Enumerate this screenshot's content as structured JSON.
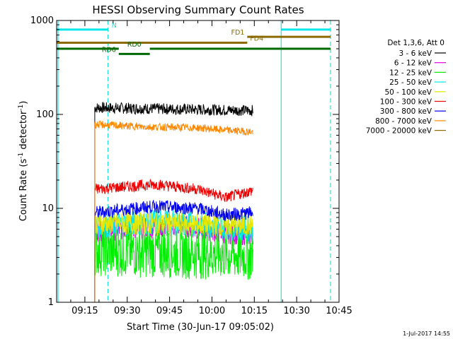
{
  "chart_data": {
    "type": "line",
    "title": "HESSI Observing Summary Count Rates",
    "xlabel": "Start Time (30-Jun-17 09:05:02)",
    "ylabel_main": "Count Rate (s",
    "ylabel_sup1": "-1",
    "ylabel_mid": " detector",
    "ylabel_sup2": "-1",
    "ylabel_end": ")",
    "footer_stamp": "1-Jul-2017 14:55",
    "y_scale": "log",
    "ylim": [
      1,
      1000
    ],
    "xlim_minutes": [
      0,
      100
    ],
    "x_ticks": [
      {
        "m": 10,
        "label": "09:15"
      },
      {
        "m": 25,
        "label": "09:30"
      },
      {
        "m": 40,
        "label": "09:45"
      },
      {
        "m": 55,
        "label": "10:00"
      },
      {
        "m": 70,
        "label": "10:15"
      },
      {
        "m": 85,
        "label": "10:30"
      },
      {
        "m": 100,
        "label": "10:45"
      }
    ],
    "y_ticks": [
      {
        "v": 1,
        "label": "1"
      },
      {
        "v": 10,
        "label": "10"
      },
      {
        "v": 100,
        "label": "100"
      },
      {
        "v": 1000,
        "label": "1000"
      }
    ],
    "legend_title": "Det 1,3,6, Att 0",
    "legend_placement": "right, outside plot",
    "series": [
      {
        "name": "3 - 6 keV",
        "color": "#000000",
        "start": 13.5,
        "end": 69.5,
        "levels": [
          [
            13.5,
            118
          ],
          [
            69.5,
            110
          ]
        ],
        "noise": 0.06
      },
      {
        "name": "6 - 12 keV",
        "color": "#e000e0",
        "start": 13.5,
        "end": 69.5,
        "levels": [
          [
            13.5,
            5.8
          ],
          [
            30,
            6.2
          ],
          [
            45,
            6.5
          ],
          [
            60,
            5.5
          ],
          [
            69.5,
            5.2
          ]
        ],
        "noise": 0.12
      },
      {
        "name": "12 - 25 keV",
        "color": "#00ee00",
        "start": 13.5,
        "end": 69.5,
        "levels": [
          [
            13.5,
            3.6
          ],
          [
            69.5,
            3.2
          ]
        ],
        "noise": 0.28
      },
      {
        "name": "25 - 50 keV",
        "color": "#00e8e8",
        "start": 13.5,
        "end": 69.5,
        "levels": [
          [
            13.5,
            6.5
          ],
          [
            35,
            7.2
          ],
          [
            50,
            6.8
          ],
          [
            69.5,
            6.0
          ]
        ],
        "noise": 0.14
      },
      {
        "name": "50 - 100 keV",
        "color": "#e8e800",
        "start": 13.5,
        "end": 69.5,
        "levels": [
          [
            13.5,
            7.0
          ],
          [
            69.5,
            6.5
          ]
        ],
        "noise": 0.12
      },
      {
        "name": "100 - 300 keV",
        "color": "#ee0000",
        "start": 13.5,
        "end": 69.5,
        "levels": [
          [
            13.5,
            16
          ],
          [
            35,
            18
          ],
          [
            50,
            16
          ],
          [
            60,
            13
          ],
          [
            69.5,
            15.5
          ]
        ],
        "noise": 0.06
      },
      {
        "name": "300 - 800 keV",
        "color": "#0000ee",
        "start": 13.5,
        "end": 69.5,
        "levels": [
          [
            13.5,
            9
          ],
          [
            35,
            10.5
          ],
          [
            50,
            10
          ],
          [
            60,
            8.5
          ],
          [
            69.5,
            9
          ]
        ],
        "noise": 0.07
      },
      {
        "name": "800 - 7000 keV",
        "color": "#ff8800",
        "start": 13.5,
        "end": 69.5,
        "levels": [
          [
            13.5,
            78
          ],
          [
            30,
            74
          ],
          [
            50,
            72
          ],
          [
            60,
            68
          ],
          [
            69.5,
            65
          ]
        ],
        "noise": 0.04
      },
      {
        "name": "7000 - 20000 keV",
        "color": "#8b6a00",
        "start": null,
        "end": null,
        "levels": [],
        "noise": 0
      }
    ],
    "annotations": {
      "vlines_solid": [
        {
          "m": 0.5,
          "color": "#00d8d8"
        },
        {
          "m": 79.5,
          "color": "#00d8d8"
        }
      ],
      "vlines_dashed": [
        {
          "m": 18.2,
          "color": "#00d8d8"
        },
        {
          "m": 97.0,
          "color": "#00d8d8"
        }
      ],
      "bars": [
        {
          "label": "N",
          "color": "#00e8e8",
          "y": 800,
          "segments": [
            [
              0,
              18.2
            ],
            [
              79.5,
              97.0
            ]
          ],
          "label_m": 19.5,
          "label_side": "right"
        },
        {
          "label": "FD1",
          "color": "#8b6a00",
          "y": 670,
          "segments": [
            [
              67.5,
              97.0
            ]
          ],
          "label_m": 66.5,
          "label_side": "left"
        },
        {
          "label": "FD4",
          "color": "#8b6a00",
          "y": 580,
          "segments": [
            [
              0,
              67.5
            ]
          ],
          "label_m": 68.5,
          "label_side": "right"
        },
        {
          "label": "RD0",
          "color": "#006a00",
          "y": 500,
          "segments": [
            [
              0,
              22
            ],
            [
              33,
              97.0
            ]
          ],
          "label_m": 27.5,
          "label_side": "center"
        },
        {
          "label": "RD6",
          "color": "#006a00",
          "y": 440,
          "segments": [
            [
              22,
              33
            ]
          ],
          "label_m": 21,
          "label_side": "left"
        }
      ]
    }
  }
}
